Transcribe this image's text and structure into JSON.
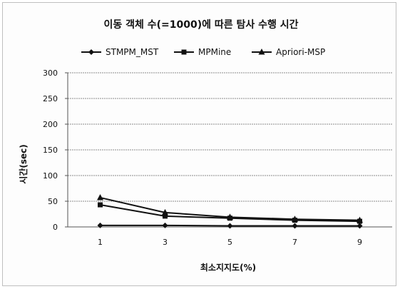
{
  "chart_data": {
    "type": "line",
    "title": "이동 객체 수(=1000)에 따른 탐사 수행 시간",
    "xlabel": "최소지지도(%)",
    "ylabel": "시간(sec)",
    "categories": [
      "1",
      "3",
      "5",
      "7",
      "9"
    ],
    "ylim": [
      0,
      300
    ],
    "yticks": [
      0,
      50,
      100,
      150,
      200,
      250,
      300
    ],
    "grid": true,
    "legend_position": "top",
    "series": [
      {
        "name": "STMPM_MST",
        "marker": "diamond",
        "color": "#111111",
        "values": [
          3,
          3,
          2,
          2,
          2
        ]
      },
      {
        "name": "MPMine",
        "marker": "square",
        "color": "#111111",
        "values": [
          43,
          21,
          17,
          13,
          11
        ]
      },
      {
        "name": "Apriori-MSP",
        "marker": "triangle",
        "color": "#111111",
        "values": [
          57,
          28,
          19,
          15,
          13
        ]
      }
    ]
  }
}
